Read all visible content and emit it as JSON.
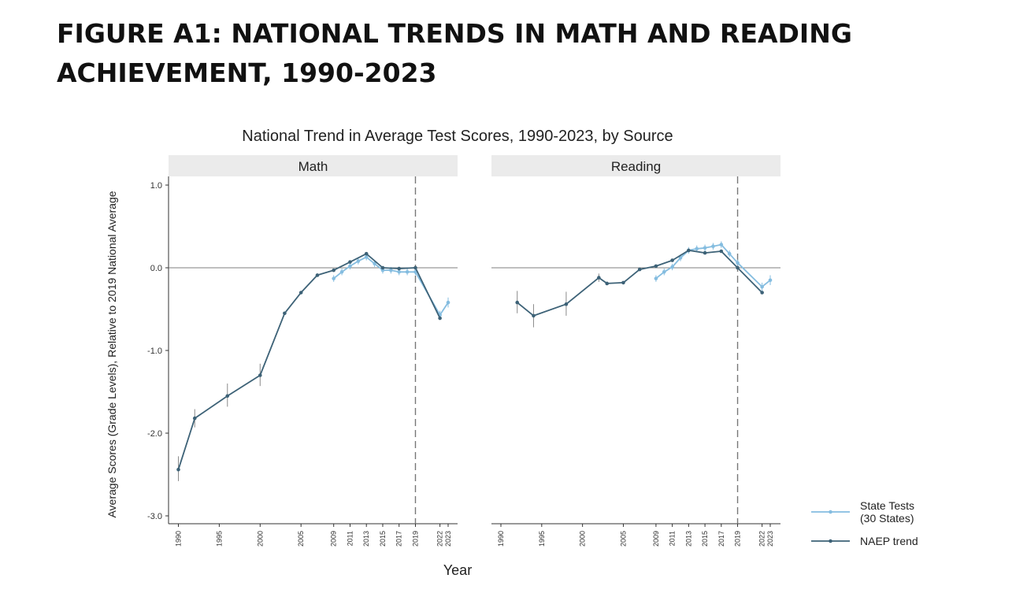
{
  "figure": {
    "title_line1": "FIGURE A1: NATIONAL TRENDS IN MATH AND READING",
    "title_line2": "ACHIEVEMENT, 1990-2023"
  },
  "colors": {
    "state": "#85bde0",
    "naep": "#3d6277",
    "strip": "#ebebeb",
    "zero_line": "#7f7f7f",
    "dashed": "#777777"
  },
  "chart_data": {
    "type": "line",
    "title": "National Trend in Average Test Scores, 1990-2023, by Source",
    "xlabel": "Year",
    "ylabel": "Average Scores (Grade Levels), Relative to 2019 National Average",
    "ylim": [
      -3.0,
      1.0
    ],
    "y_ticks": [
      {
        "value": 1.0,
        "label": "1.0"
      },
      {
        "value": 0.0,
        "label": "0.0"
      },
      {
        "value": -1.0,
        "label": "-1.0"
      },
      {
        "value": -2.0,
        "label": "-2.0"
      },
      {
        "value": -3.0,
        "label": "-3.0"
      }
    ],
    "x_ticks": [
      1990,
      1995,
      2000,
      2005,
      2009,
      2011,
      2013,
      2015,
      2017,
      2019,
      2022,
      2023
    ],
    "reference_year": 2019,
    "legend": [
      {
        "key": "state",
        "lines": [
          "State Tests",
          "(30 States)"
        ]
      },
      {
        "key": "naep",
        "lines": [
          "NAEP trend"
        ]
      }
    ],
    "panels": [
      {
        "name": "Math",
        "series": [
          {
            "name": "NAEP trend",
            "key": "naep",
            "segments": [
              [
                {
                  "x": 1990,
                  "y": -2.44,
                  "lo": -2.58,
                  "hi": -2.28
                },
                {
                  "x": 1992,
                  "y": -1.82,
                  "lo": -1.93,
                  "hi": -1.71
                },
                {
                  "x": 1996,
                  "y": -1.55,
                  "lo": -1.68,
                  "hi": -1.4
                },
                {
                  "x": 2000,
                  "y": -1.3,
                  "lo": -1.43,
                  "hi": -1.16
                },
                {
                  "x": 2003,
                  "y": -0.55
                },
                {
                  "x": 2005,
                  "y": -0.3
                },
                {
                  "x": 2007,
                  "y": -0.09
                },
                {
                  "x": 2009,
                  "y": -0.03
                },
                {
                  "x": 2011,
                  "y": 0.07
                },
                {
                  "x": 2013,
                  "y": 0.17
                },
                {
                  "x": 2015,
                  "y": 0.0
                },
                {
                  "x": 2017,
                  "y": -0.01
                },
                {
                  "x": 2019,
                  "y": 0.0
                }
              ],
              [
                {
                  "x": 2019,
                  "y": 0.0
                },
                {
                  "x": 2022,
                  "y": -0.61
                }
              ]
            ]
          },
          {
            "name": "State Tests (30 States)",
            "key": "state",
            "segments": [
              [
                {
                  "x": 2009,
                  "y": -0.13,
                  "lo": -0.17,
                  "hi": -0.09
                },
                {
                  "x": 2010,
                  "y": -0.05,
                  "lo": -0.09,
                  "hi": -0.01
                },
                {
                  "x": 2011,
                  "y": 0.02,
                  "lo": -0.02,
                  "hi": 0.06
                },
                {
                  "x": 2012,
                  "y": 0.08,
                  "lo": 0.04,
                  "hi": 0.12
                },
                {
                  "x": 2013,
                  "y": 0.13,
                  "lo": 0.09,
                  "hi": 0.17
                },
                {
                  "x": 2014,
                  "y": 0.05,
                  "lo": 0.01,
                  "hi": 0.09
                },
                {
                  "x": 2015,
                  "y": -0.03,
                  "lo": -0.07,
                  "hi": 0.01
                },
                {
                  "x": 2016,
                  "y": -0.03,
                  "lo": -0.07,
                  "hi": 0.01
                },
                {
                  "x": 2017,
                  "y": -0.05,
                  "lo": -0.09,
                  "hi": -0.01
                },
                {
                  "x": 2018,
                  "y": -0.05,
                  "lo": -0.09,
                  "hi": -0.01
                },
                {
                  "x": 2019,
                  "y": -0.05,
                  "lo": -0.09,
                  "hi": -0.01
                }
              ],
              [
                {
                  "x": 2019,
                  "y": -0.05
                },
                {
                  "x": 2022,
                  "y": -0.57,
                  "lo": -0.62,
                  "hi": -0.52
                },
                {
                  "x": 2023,
                  "y": -0.42,
                  "lo": -0.48,
                  "hi": -0.36
                }
              ]
            ]
          }
        ]
      },
      {
        "name": "Reading",
        "series": [
          {
            "name": "NAEP trend",
            "key": "naep",
            "segments": [
              [
                {
                  "x": 1992,
                  "y": -0.42,
                  "lo": -0.55,
                  "hi": -0.28
                },
                {
                  "x": 1994,
                  "y": -0.58,
                  "lo": -0.72,
                  "hi": -0.44
                },
                {
                  "x": 1998,
                  "y": -0.44,
                  "lo": -0.58,
                  "hi": -0.29
                },
                {
                  "x": 2002,
                  "y": -0.12,
                  "lo": -0.17,
                  "hi": -0.07
                },
                {
                  "x": 2003,
                  "y": -0.19
                },
                {
                  "x": 2005,
                  "y": -0.18
                },
                {
                  "x": 2007,
                  "y": -0.02
                },
                {
                  "x": 2009,
                  "y": 0.02
                },
                {
                  "x": 2011,
                  "y": 0.09
                },
                {
                  "x": 2013,
                  "y": 0.21
                },
                {
                  "x": 2015,
                  "y": 0.18
                },
                {
                  "x": 2017,
                  "y": 0.2
                },
                {
                  "x": 2019,
                  "y": 0.0
                }
              ],
              [
                {
                  "x": 2019,
                  "y": 0.0
                },
                {
                  "x": 2022,
                  "y": -0.3
                }
              ]
            ]
          },
          {
            "name": "State Tests (30 States)",
            "key": "state",
            "segments": [
              [
                {
                  "x": 2009,
                  "y": -0.13,
                  "lo": -0.17,
                  "hi": -0.09
                },
                {
                  "x": 2010,
                  "y": -0.05,
                  "lo": -0.09,
                  "hi": -0.01
                },
                {
                  "x": 2011,
                  "y": 0.01,
                  "lo": -0.03,
                  "hi": 0.05
                },
                {
                  "x": 2012,
                  "y": 0.12,
                  "lo": 0.08,
                  "hi": 0.16
                },
                {
                  "x": 2013,
                  "y": 0.21,
                  "lo": 0.17,
                  "hi": 0.25
                },
                {
                  "x": 2014,
                  "y": 0.23,
                  "lo": 0.19,
                  "hi": 0.27
                },
                {
                  "x": 2015,
                  "y": 0.24,
                  "lo": 0.2,
                  "hi": 0.28
                },
                {
                  "x": 2016,
                  "y": 0.26,
                  "lo": 0.22,
                  "hi": 0.3
                },
                {
                  "x": 2017,
                  "y": 0.28,
                  "lo": 0.24,
                  "hi": 0.32
                },
                {
                  "x": 2018,
                  "y": 0.17,
                  "lo": 0.13,
                  "hi": 0.21
                },
                {
                  "x": 2019,
                  "y": 0.06,
                  "lo": 0.02,
                  "hi": 0.1
                }
              ],
              [
                {
                  "x": 2019,
                  "y": 0.06
                },
                {
                  "x": 2022,
                  "y": -0.23,
                  "lo": -0.28,
                  "hi": -0.18
                },
                {
                  "x": 2023,
                  "y": -0.15,
                  "lo": -0.21,
                  "hi": -0.09
                }
              ]
            ]
          }
        ]
      }
    ]
  }
}
